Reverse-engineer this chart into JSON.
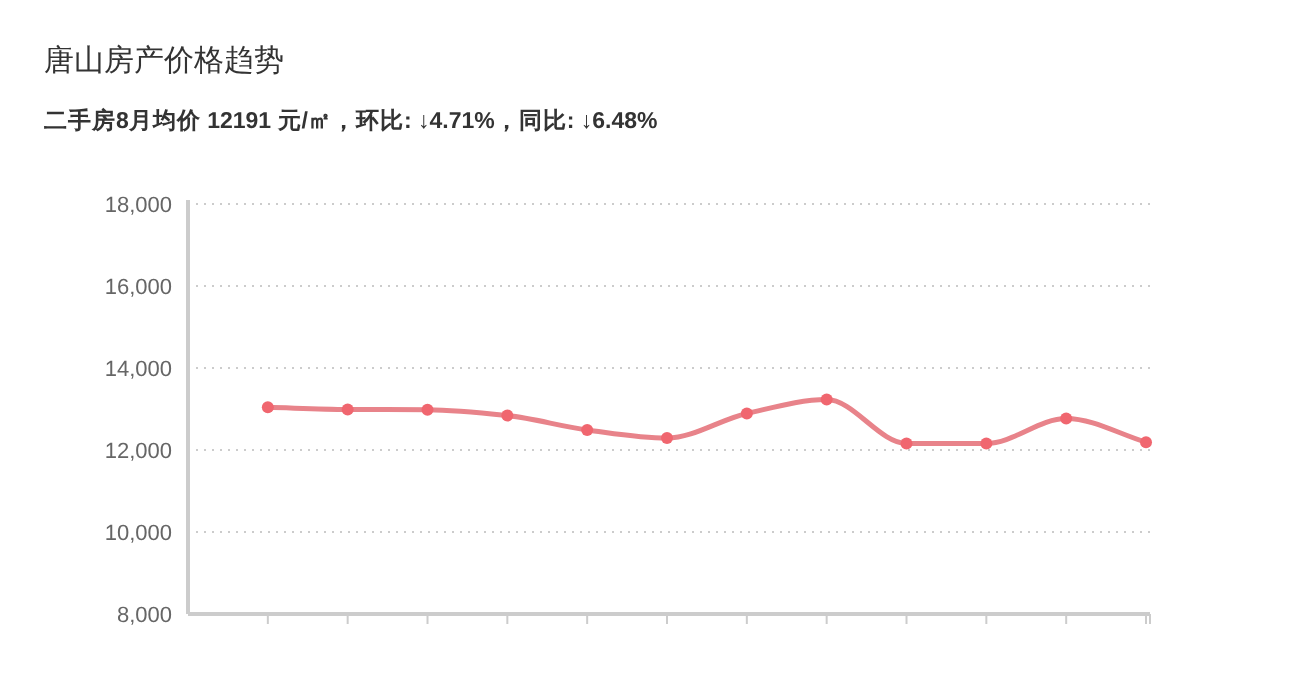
{
  "chart_data": {
    "type": "line",
    "title": "唐山房产价格趋势",
    "subtitle": "二手房8月均价 12191 元/㎡，环比: ↓4.71%，同比: ↓6.48%",
    "categories": [
      null,
      null,
      null,
      null,
      null,
      null,
      null,
      null,
      null,
      null,
      null,
      null
    ],
    "series": [
      {
        "color": "#e8838a",
        "values": [
          13040,
          12990,
          12980,
          12840,
          12490,
          12290,
          12890,
          13230,
          12160,
          12160,
          12770,
          12191
        ]
      }
    ],
    "ylim": [
      8000,
      18000
    ],
    "yticks": [
      {
        "value": 8000,
        "label": "8,000"
      },
      {
        "value": 10000,
        "label": "10,000"
      },
      {
        "value": 12000,
        "label": "12,000"
      },
      {
        "value": 14000,
        "label": "14,000"
      },
      {
        "value": 16000,
        "label": "16,000"
      },
      {
        "value": 18000,
        "label": "18,000"
      }
    ],
    "grid": "y",
    "marker": "circle"
  }
}
